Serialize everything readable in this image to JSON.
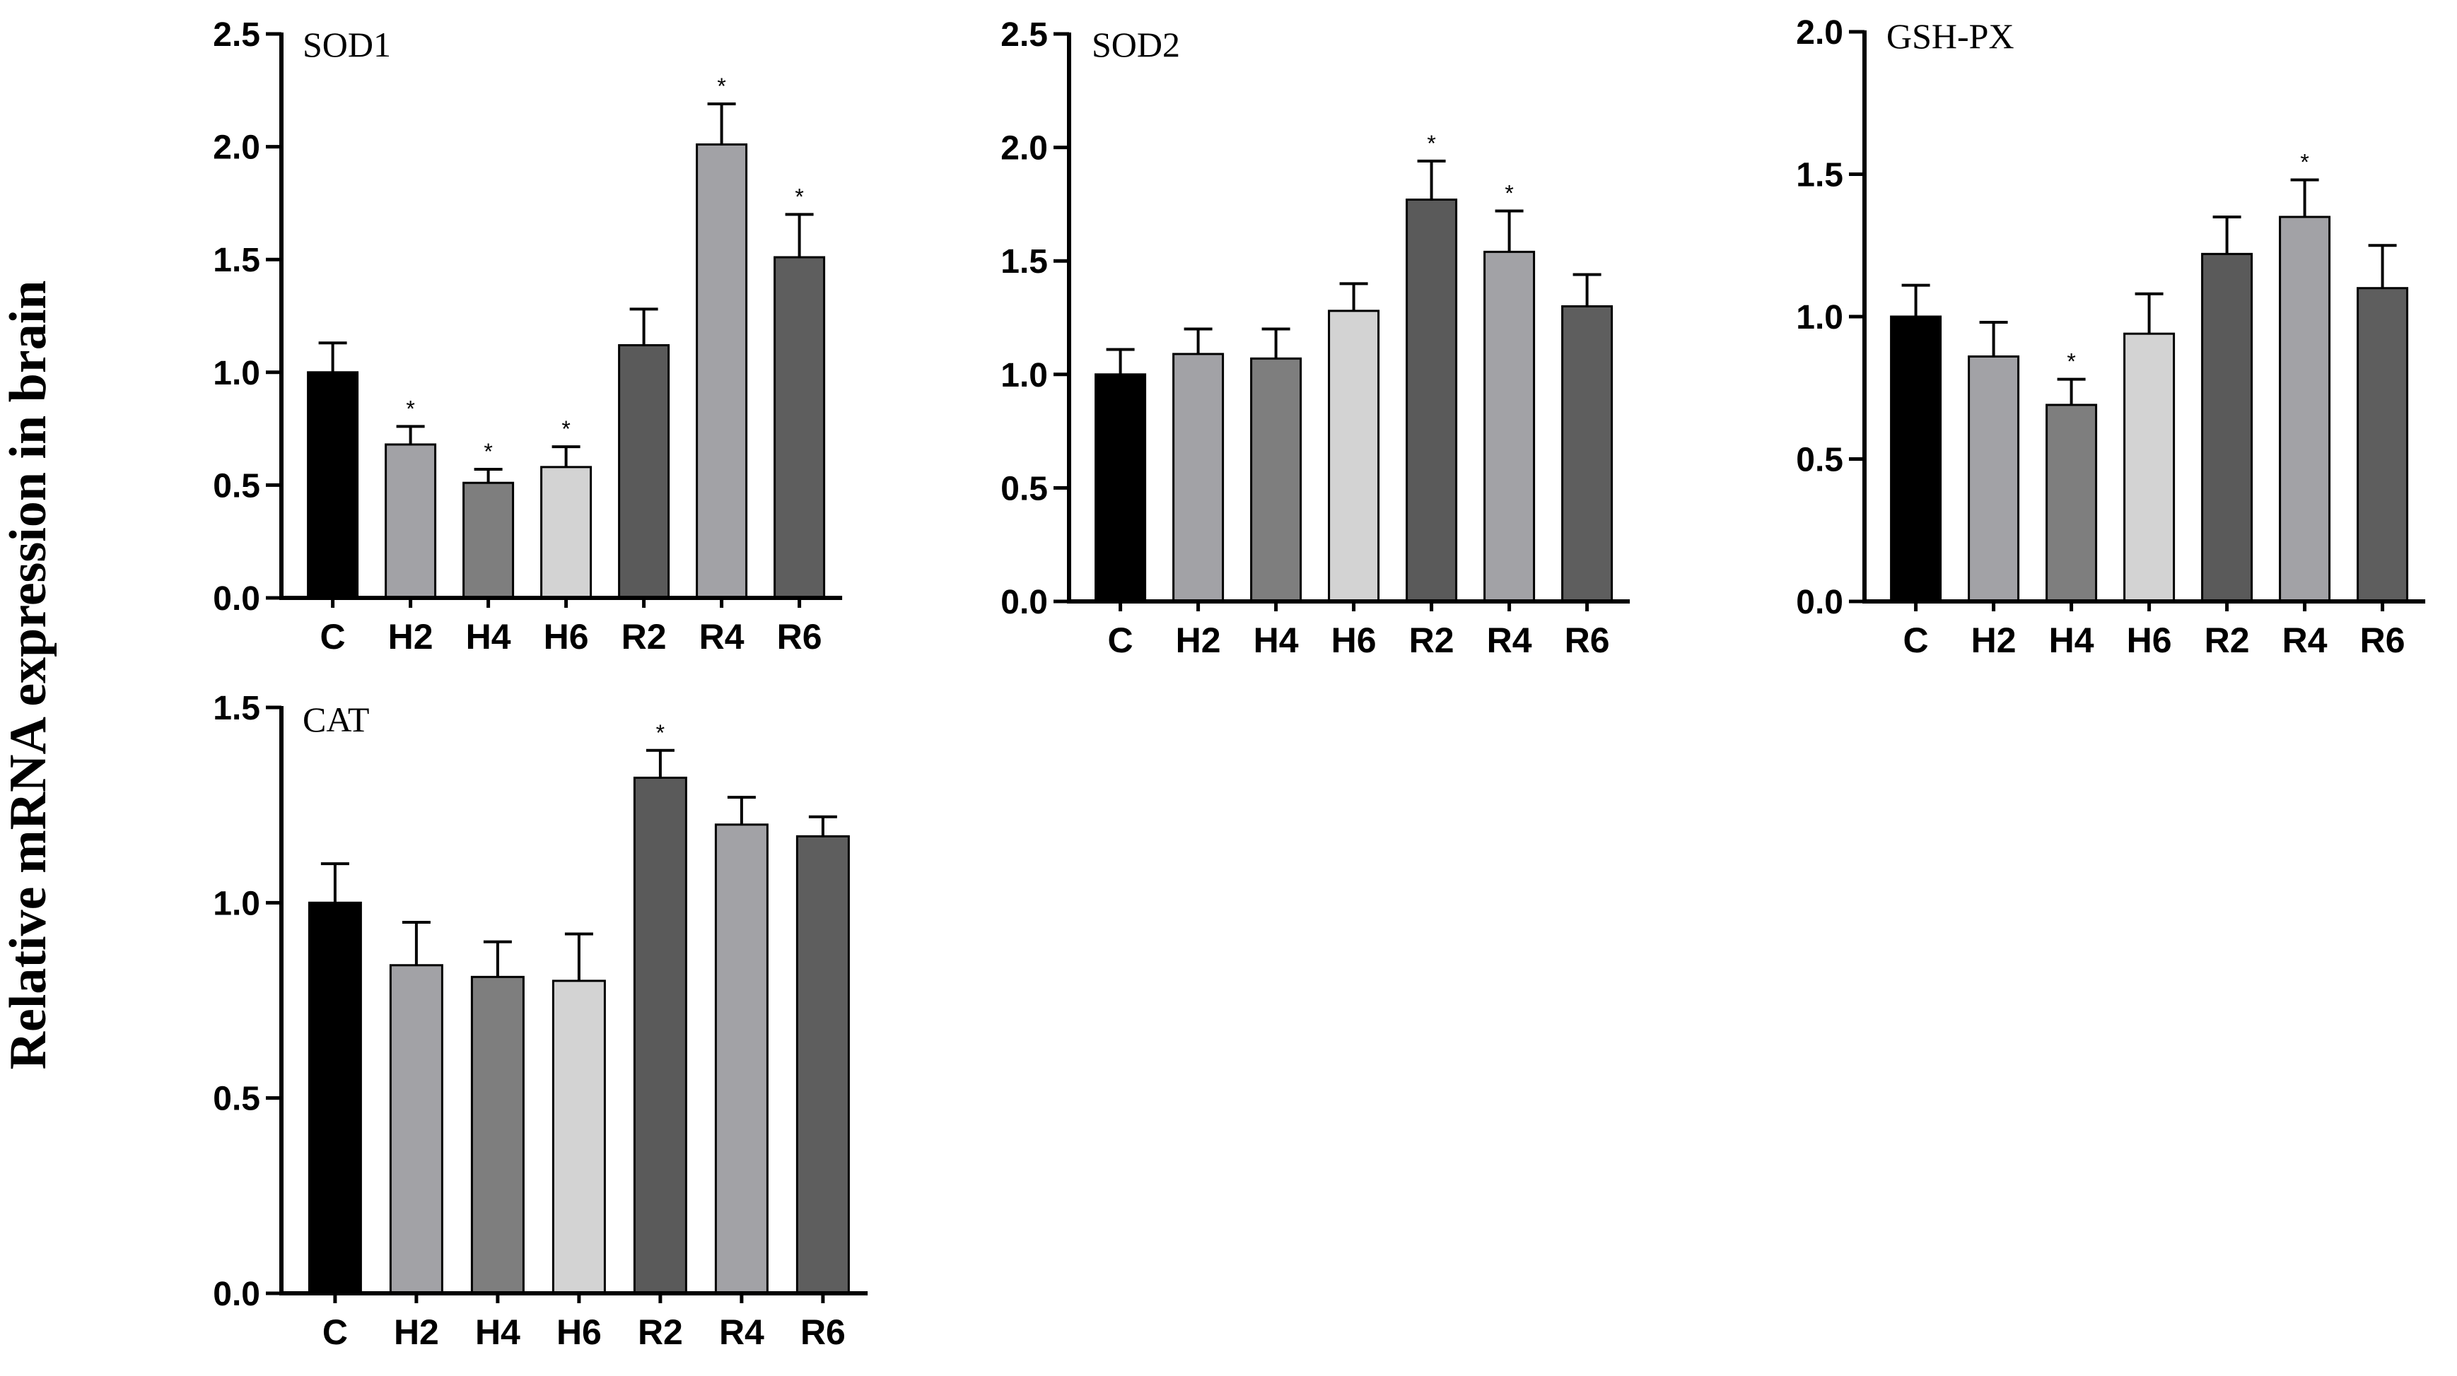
{
  "figure_ylabel": "Relative mRNA expression in brain",
  "significance_marker": "*",
  "chart_data": [
    {
      "type": "bar",
      "title": "SOD1",
      "ylabel": "Relative mRNA expression in brain",
      "categories": [
        "C",
        "H2",
        "H4",
        "H6",
        "R2",
        "R4",
        "R6"
      ],
      "values": [
        1.0,
        0.68,
        0.51,
        0.58,
        1.12,
        2.01,
        1.51
      ],
      "errors": [
        0.13,
        0.08,
        0.06,
        0.09,
        0.16,
        0.18,
        0.19
      ],
      "significant": [
        false,
        true,
        true,
        true,
        false,
        true,
        true
      ],
      "colors": [
        "#000000",
        "#a2a2a6",
        "#7e7e7e",
        "#d3d3d3",
        "#5a5a5a",
        "#a2a2a6",
        "#5e5e5e"
      ],
      "ylim": [
        0,
        2.5
      ],
      "yticks": [
        0.0,
        0.5,
        1.0,
        1.5,
        2.0,
        2.5
      ],
      "ytick_labels": [
        "0.0",
        "0.5",
        "1.0",
        "1.5",
        "2.0",
        "2.5"
      ]
    },
    {
      "type": "bar",
      "title": "SOD2",
      "ylabel": "Relative mRNA expression in brain",
      "categories": [
        "C",
        "H2",
        "H4",
        "H6",
        "R2",
        "R4",
        "R6"
      ],
      "values": [
        1.0,
        1.09,
        1.07,
        1.28,
        1.77,
        1.54,
        1.3
      ],
      "errors": [
        0.11,
        0.11,
        0.13,
        0.12,
        0.17,
        0.18,
        0.14
      ],
      "significant": [
        false,
        false,
        false,
        false,
        true,
        true,
        false
      ],
      "colors": [
        "#000000",
        "#a2a2a6",
        "#7e7e7e",
        "#d3d3d3",
        "#5a5a5a",
        "#a2a2a6",
        "#5e5e5e"
      ],
      "ylim": [
        0,
        2.5
      ],
      "yticks": [
        0.0,
        0.5,
        1.0,
        1.5,
        2.0,
        2.5
      ],
      "ytick_labels": [
        "0.0",
        "0.5",
        "1.0",
        "1.5",
        "2.0",
        "2.5"
      ]
    },
    {
      "type": "bar",
      "title": "GSH-PX",
      "ylabel": "Relative mRNA expression in brain",
      "categories": [
        "C",
        "H2",
        "H4",
        "H6",
        "R2",
        "R4",
        "R6"
      ],
      "values": [
        1.0,
        0.86,
        0.69,
        0.94,
        1.22,
        1.35,
        1.1
      ],
      "errors": [
        0.11,
        0.12,
        0.09,
        0.14,
        0.13,
        0.13,
        0.15
      ],
      "significant": [
        false,
        false,
        true,
        false,
        false,
        true,
        false
      ],
      "colors": [
        "#000000",
        "#a2a2a6",
        "#7e7e7e",
        "#d3d3d3",
        "#5a5a5a",
        "#a2a2a6",
        "#5e5e5e"
      ],
      "ylim": [
        0,
        2.0
      ],
      "yticks": [
        0.0,
        0.5,
        1.0,
        1.5,
        2.0
      ],
      "ytick_labels": [
        "0.0",
        "0.5",
        "1.0",
        "1.5",
        "2.0"
      ]
    },
    {
      "type": "bar",
      "title": "CAT",
      "ylabel": "Relative mRNA expression in brain",
      "categories": [
        "C",
        "H2",
        "H4",
        "H6",
        "R2",
        "R4",
        "R6"
      ],
      "values": [
        1.0,
        0.84,
        0.81,
        0.8,
        1.32,
        1.2,
        1.17
      ],
      "errors": [
        0.1,
        0.11,
        0.09,
        0.12,
        0.07,
        0.07,
        0.05
      ],
      "significant": [
        false,
        false,
        false,
        false,
        true,
        false,
        false
      ],
      "colors": [
        "#000000",
        "#a2a2a6",
        "#7e7e7e",
        "#d3d3d3",
        "#5a5a5a",
        "#a2a2a6",
        "#5e5e5e"
      ],
      "ylim": [
        0,
        1.5
      ],
      "yticks": [
        0.0,
        0.5,
        1.0,
        1.5
      ],
      "ytick_labels": [
        "0.0",
        "0.5",
        "1.0",
        "1.5"
      ]
    }
  ]
}
